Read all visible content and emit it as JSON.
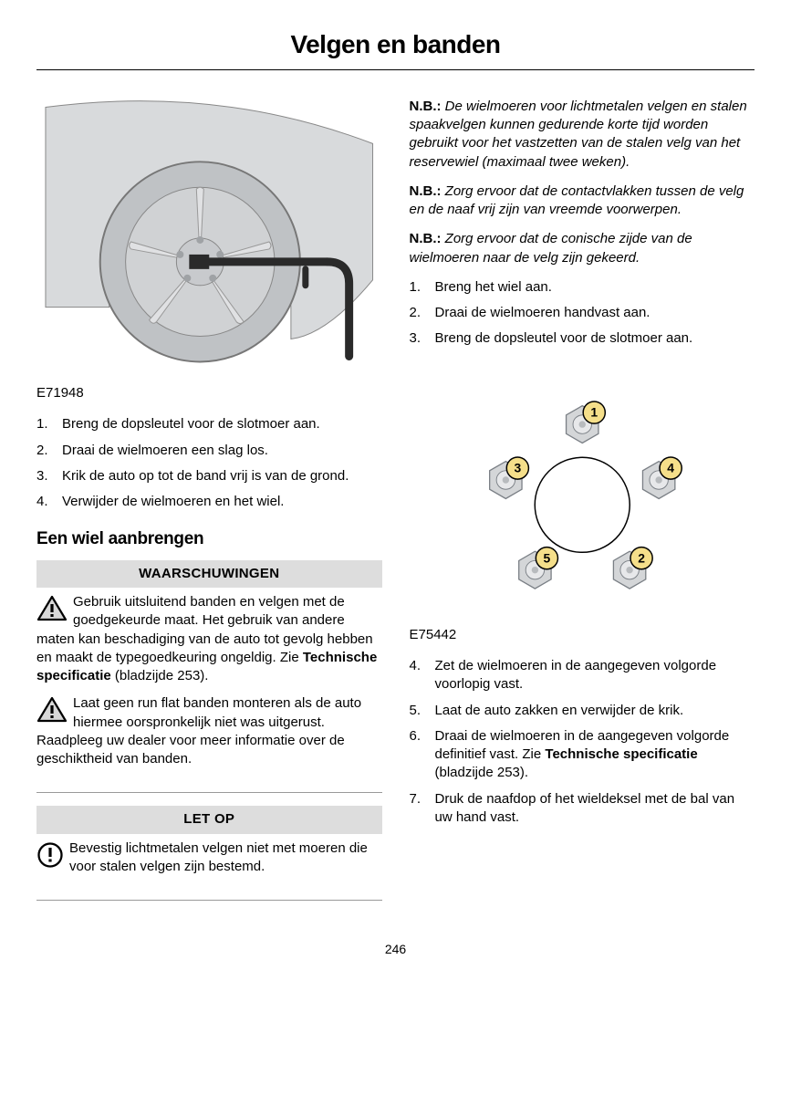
{
  "title": "Velgen en banden",
  "page_number": "246",
  "left": {
    "illustration_id": "E71948",
    "steps_a": [
      "Breng de dopsleutel voor de slotmoer aan.",
      "Draai de wielmoeren een slag los.",
      "Krik de auto op tot de band vrij is van de grond.",
      "Verwijder de wielmoeren en het wiel."
    ],
    "subheading": "Een wiel aanbrengen",
    "warn_header": "WAARSCHUWINGEN",
    "warn1_pre": "Gebruik uitsluitend banden en velgen met de goedgekeurde maat. Het gebruik van andere maten kan beschadiging van de auto tot gevolg hebben en maakt de typegoedkeuring ongeldig.  Zie ",
    "warn1_bold": "Technische specificatie",
    "warn1_post": " (bladzijde 253).",
    "warn2": "Laat geen run flat banden monteren als de auto hiermee oorspronkelijk niet was uitgerust. Raadpleeg uw dealer voor meer informatie over de geschiktheid van banden.",
    "caution_header": "LET OP",
    "caution1": "Bevestig lichtmetalen velgen niet met moeren die voor stalen velgen zijn bestemd."
  },
  "right": {
    "nb_label": "N.B.:",
    "nb1": "De wielmoeren voor lichtmetalen velgen en stalen spaakvelgen kunnen gedurende korte tijd worden gebruikt voor het vastzetten van de stalen velg van het reservewiel (maximaal twee weken).",
    "nb2": "Zorg ervoor dat de contactvlakken tussen de velg en de naaf vrij zijn van vreemde voorwerpen.",
    "nb3": "Zorg ervoor dat de conische zijde van de wielmoeren naar de velg zijn gekeerd.",
    "steps_b": [
      "Breng het wiel aan.",
      "Draai de wielmoeren handvast aan.",
      "Breng de dopsleutel voor de slotmoer aan."
    ],
    "lug": {
      "labels": [
        "1",
        "2",
        "3",
        "4",
        "5"
      ],
      "nut_fill": "#d4d6d8",
      "nut_stroke": "#7a7f85",
      "badge_fill": "#f5df8a",
      "badge_stroke": "#000",
      "center_stroke": "#000"
    },
    "lug_id": "E75442",
    "steps_c_start": 4,
    "steps_c": [
      {
        "text": "Zet de wielmoeren in de aangegeven volgorde voorlopig vast."
      },
      {
        "text": "Laat de auto zakken en verwijder de krik."
      },
      {
        "pre": "Draai de wielmoeren in de aangegeven volgorde definitief vast.  Zie ",
        "bold": "Technische specificatie",
        "post": " (bladzijde 253)."
      },
      {
        "text": "Druk de naafdop of het wieldeksel met de bal van uw hand vast."
      }
    ]
  }
}
